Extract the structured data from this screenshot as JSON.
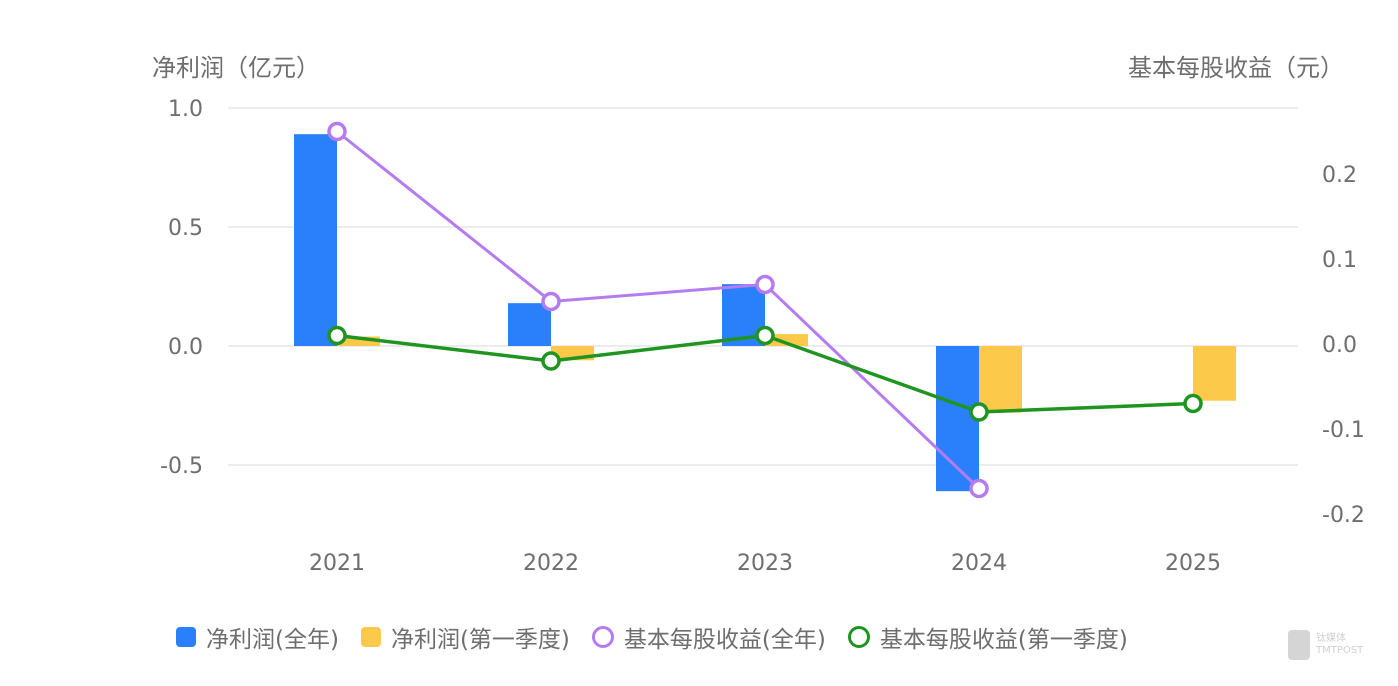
{
  "chart_data": {
    "type": "bar+line",
    "title": "",
    "categories": [
      "2021",
      "2022",
      "2023",
      "2024",
      "2025"
    ],
    "left_axis": {
      "label": "净利润（亿元）",
      "ticks": [
        "1.0",
        "0.5",
        "0.0",
        "-0.5"
      ],
      "range": [
        -0.75,
        1.0
      ]
    },
    "right_axis": {
      "label": "基本每股收益（元）",
      "ticks": [
        "0.2",
        "0.1",
        "0.0",
        "-0.1",
        "-0.2"
      ],
      "range": [
        -0.2,
        0.28
      ]
    },
    "series": [
      {
        "name": "净利润(全年)",
        "type": "bar",
        "axis": "left",
        "color": "#2a7ffb",
        "values": [
          0.89,
          0.18,
          0.26,
          -0.61,
          null
        ]
      },
      {
        "name": "净利润(第一季度)",
        "type": "bar",
        "axis": "left",
        "color": "#fdc94b",
        "values": [
          0.04,
          -0.06,
          0.05,
          -0.28,
          -0.23
        ]
      },
      {
        "name": "基本每股收益(全年)",
        "type": "line",
        "axis": "right",
        "color": "#b47cf0",
        "values": [
          0.25,
          0.05,
          0.07,
          -0.17,
          null
        ]
      },
      {
        "name": "基本每股收益(第一季度)",
        "type": "line",
        "axis": "right",
        "color": "#1f9520",
        "values": [
          0.01,
          -0.02,
          0.01,
          -0.08,
          -0.07
        ]
      }
    ],
    "grid": true,
    "legend_position": "bottom"
  },
  "axes": {
    "left_title": "净利润（亿元）",
    "right_title": "基本每股收益（元）"
  },
  "legend": {
    "items": [
      {
        "label": "净利润(全年)",
        "color": "#2a7ffb",
        "shape": "square"
      },
      {
        "label": "净利润(第一季度)",
        "color": "#fdc94b",
        "shape": "square"
      },
      {
        "label": "基本每股收益(全年)",
        "color": "#b47cf0",
        "shape": "ring"
      },
      {
        "label": "基本每股收益(第一季度)",
        "color": "#1f9520",
        "shape": "ring"
      }
    ]
  },
  "watermark": {
    "text_cn": "钛媒体",
    "text_en": "TMTPOST"
  }
}
